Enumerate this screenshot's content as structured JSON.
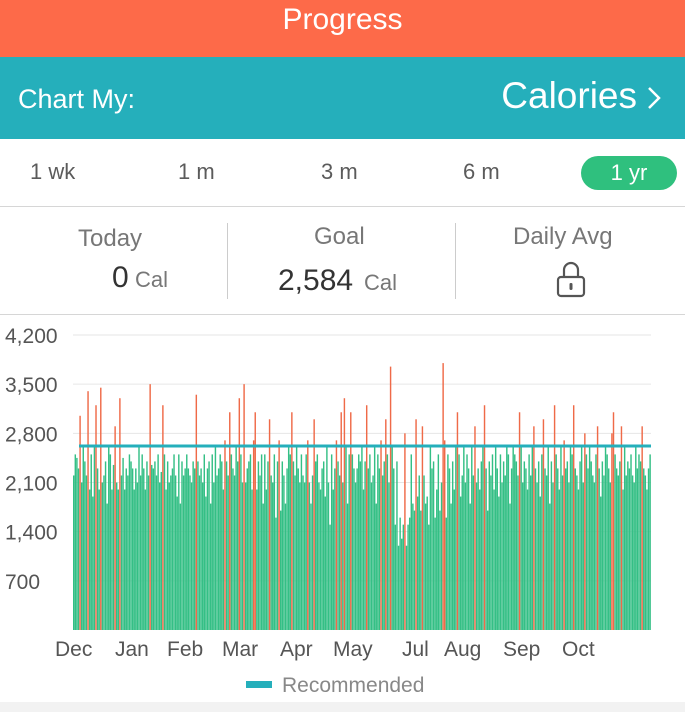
{
  "header": {
    "title": "Progress"
  },
  "chart_selector": {
    "label": "Chart My:",
    "metric": "Calories"
  },
  "ranges": {
    "items": [
      "1 wk",
      "1 m",
      "3 m",
      "6 m",
      "1 yr"
    ],
    "active": "1 yr"
  },
  "stats": {
    "today": {
      "label": "Today",
      "value": "0",
      "unit": "Cal"
    },
    "goal": {
      "label": "Goal",
      "value": "2,584",
      "unit": "Cal"
    },
    "daily_avg": {
      "label": "Daily Avg",
      "icon": "lock-icon"
    }
  },
  "colors": {
    "header": "#fd6a49",
    "selector": "#25afbb",
    "under": "#34bf85",
    "over": "#ef6a48",
    "recommended": "#25afbb",
    "active_range": "#2fc07e"
  },
  "chart_data": {
    "type": "bar",
    "title": "",
    "y_ticks": [
      "4,200",
      "3,500",
      "2,800",
      "2,100",
      "1,400",
      "700"
    ],
    "ylim": [
      0,
      4200
    ],
    "x_labels": [
      "Dec",
      "Jan",
      "Feb",
      "Mar",
      "Apr",
      "May",
      "Jul",
      "Aug",
      "Sep",
      "Oct"
    ],
    "recommended": 2620,
    "legend": "Recommended",
    "legend_position": "bottom",
    "values": [
      2200,
      2500,
      2450,
      2300,
      3050,
      2100,
      2600,
      2400,
      2200,
      3400,
      2000,
      2500,
      1900,
      2600,
      3200,
      2300,
      2000,
      3450,
      2100,
      2200,
      2400,
      1800,
      2600,
      2500,
      2000,
      2350,
      2900,
      2100,
      2000,
      3300,
      2200,
      2450,
      2000,
      2300,
      2200,
      2500,
      2400,
      2300,
      2000,
      2300,
      2100,
      2600,
      2200,
      2500,
      2300,
      2000,
      2400,
      2200,
      3500,
      2350,
      2300,
      2400,
      2200,
      2500,
      2100,
      2250,
      3200,
      2500,
      2000,
      2400,
      2100,
      2200,
      2300,
      2500,
      2200,
      1900,
      2500,
      1800,
      2400,
      2200,
      2300,
      2500,
      2300,
      2200,
      2100,
      2400,
      2300,
      3350,
      2400,
      2200,
      2300,
      2100,
      2500,
      1900,
      2300,
      2400,
      1800,
      2500,
      2100,
      2600,
      2200,
      2300,
      2500,
      2400,
      2000,
      2700,
      2400,
      2200,
      3100,
      2500,
      2300,
      2200,
      2600,
      2400,
      3300,
      2500,
      2100,
      3500,
      2100,
      2300,
      2400,
      2500,
      2000,
      2700,
      3100,
      2000,
      2400,
      2200,
      2500,
      1800,
      2500,
      2000,
      2400,
      3000,
      2200,
      2100,
      2500,
      1600,
      2400,
      2700,
      1700,
      2400,
      2200,
      1800,
      2300,
      2600,
      2500,
      3100,
      2400,
      2200,
      2600,
      2300,
      2100,
      2500,
      2200,
      2100,
      2500,
      2700,
      2100,
      1800,
      2200,
      3000,
      2400,
      2500,
      2100,
      2000,
      2300,
      2400,
      1900,
      2600,
      2100,
      1500,
      2500,
      2000,
      2300,
      2700,
      2400,
      2200,
      3100,
      2100,
      3300,
      2600,
      1800,
      2500,
      3100,
      2500,
      2300,
      2100,
      2300,
      2500,
      2400,
      2600,
      2000,
      2400,
      3200,
      2300,
      2500,
      2100,
      2200,
      2600,
      1800,
      2500,
      2300,
      2700,
      2200,
      2400,
      3000,
      2500,
      2100,
      3750,
      2600,
      2300,
      1500,
      2400,
      1200,
      1600,
      1300,
      1500,
      2800,
      1200,
      1500,
      1600,
      2500,
      1800,
      1700,
      3000,
      1900,
      2200,
      1700,
      2900,
      2200,
      1800,
      1900,
      1500,
      2600,
      2300,
      2400,
      1600,
      2000,
      2500,
      1700,
      2100,
      3800,
      2700,
      1600,
      2500,
      2300,
      1800,
      2400,
      2000,
      2600,
      3100,
      2500,
      1900,
      2200,
      2600,
      2100,
      2500,
      2300,
      1800,
      2600,
      2200,
      2900,
      2100,
      2300,
      2000,
      2400,
      2600,
      3200,
      2300,
      1700,
      2400,
      2200,
      2500,
      2000,
      2600,
      2300,
      1900,
      2500,
      2100,
      2400,
      2200,
      2600,
      2500,
      1800,
      2300,
      2600,
      2500,
      2400,
      2200,
      3100,
      2600,
      2100,
      2400,
      2300,
      2000,
      2500,
      2200,
      2600,
      2900,
      2300,
      2100,
      2400,
      1900,
      2500,
      3000,
      2300,
      2200,
      2600,
      1800,
      2400,
      2100,
      3200,
      2500,
      2300,
      2000,
      2600,
      2200,
      2700,
      2300,
      2400,
      2100,
      2600,
      2500,
      3200,
      2300,
      2200,
      2000,
      2400,
      2600,
      2100,
      2800,
      2500,
      2300,
      2600,
      2400,
      2200,
      2100,
      2500,
      2900,
      2300,
      1900,
      2400,
      2200,
      2600,
      2500,
      2300,
      2100,
      2800,
      3100,
      2500,
      2300,
      2200,
      2400,
      2900,
      2000,
      2600,
      2200,
      2400,
      2300,
      2500,
      2200,
      2100,
      2600,
      2300,
      2500,
      2400,
      2900,
      2300,
      2200,
      2000,
      2300,
      2500
    ]
  }
}
